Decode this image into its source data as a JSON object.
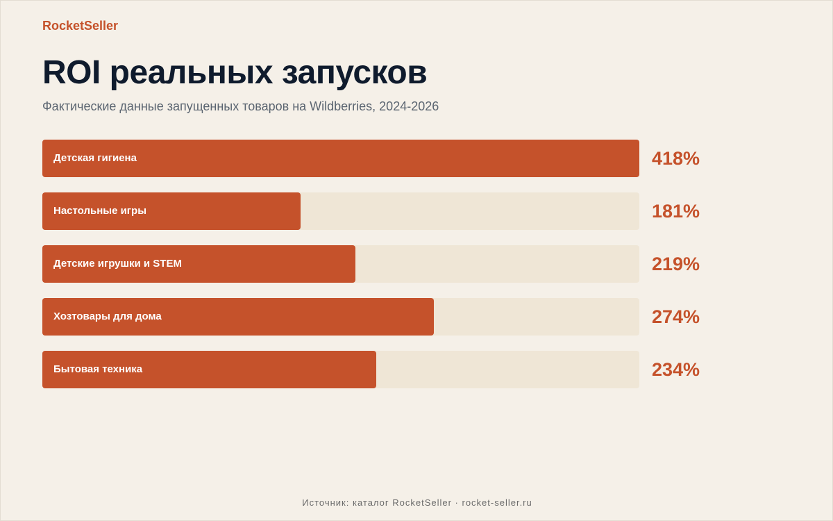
{
  "brand": "RocketSeller",
  "header": {
    "title": "ROI реальных запусков",
    "subtitle": "Фактические данные запущенных товаров на Wildberries, 2024-2026"
  },
  "chart_data": {
    "type": "bar",
    "orientation": "horizontal",
    "categories": [
      "Детская гигиена",
      "Настольные игры",
      "Детские игрушки и STEM",
      "Хозтовары для дома",
      "Бытовая техника"
    ],
    "values": [
      418,
      181,
      219,
      274,
      234
    ],
    "value_labels": [
      "418%",
      "181%",
      "219%",
      "274%",
      "234%"
    ],
    "xlim": [
      0,
      418
    ],
    "grid": false,
    "legend": "none",
    "colors": {
      "bar": "#C5522B",
      "track": "#EFE6D6",
      "value_text": "#C5522B"
    }
  },
  "footer": {
    "source": "Источник: каталог RocketSeller · rocket-seller.ru"
  }
}
